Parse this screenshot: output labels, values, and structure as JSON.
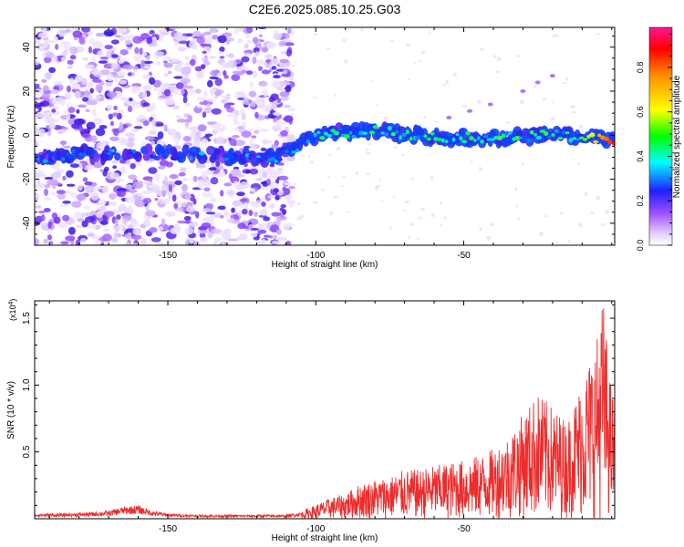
{
  "figure": {
    "title": "C2E6.2025.085.10.25.G03"
  },
  "chart_data": [
    {
      "type": "heatmap",
      "xlabel": "Height of straight line (km)",
      "ylabel": "Frequency (Hz)",
      "xlim": [
        -195,
        1
      ],
      "ylim": [
        -50,
        49
      ],
      "x_ticks": [
        -150,
        -100,
        -50
      ],
      "y_ticks": [
        -40,
        -20,
        0,
        20,
        40
      ],
      "grid": false,
      "colorbar": {
        "label": "Normalized spectral amplitude",
        "range": [
          0,
          0.98
        ],
        "ticks": [
          0.0,
          0.2,
          0.4,
          0.6,
          0.8
        ],
        "colors": [
          "#ffffff",
          "#e6d2ff",
          "#8a2be2",
          "#0000ff",
          "#00ffff",
          "#00ff00",
          "#ffff00",
          "#ff8c00",
          "#ff0000",
          "#ff1493"
        ]
      },
      "ridge": [
        {
          "x": -195,
          "y": -10
        },
        {
          "x": -180,
          "y": -9
        },
        {
          "x": -160,
          "y": -8
        },
        {
          "x": -140,
          "y": -9
        },
        {
          "x": -125,
          "y": -10
        },
        {
          "x": -112,
          "y": -10
        },
        {
          "x": -100,
          "y": 0
        },
        {
          "x": -80,
          "y": 2
        },
        {
          "x": -60,
          "y": -1
        },
        {
          "x": -40,
          "y": -1
        },
        {
          "x": -20,
          "y": 0
        },
        {
          "x": 0,
          "y": -2
        }
      ]
    },
    {
      "type": "line",
      "xlabel": "Height of straight line (km)",
      "ylabel": "SNR (10 * v/v)",
      "y_multiplier": "(x10",
      "y_multiplier_exp": "4",
      "y_multiplier_close": ")",
      "xlim": [
        -195,
        1
      ],
      "ylim": [
        0,
        1.63
      ],
      "x_ticks": [
        -150,
        -100,
        -50
      ],
      "y_ticks": [
        0.5,
        1.0,
        1.5
      ],
      "grid": false,
      "series": [
        {
          "color": "#ee2c2c",
          "x": [
            -195,
            -185,
            -175,
            -170,
            -165,
            -160,
            -155,
            -150,
            -140,
            -130,
            -120,
            -110,
            -105,
            -100,
            -95,
            -90,
            -85,
            -80,
            -75,
            -70,
            -65,
            -60,
            -55,
            -50,
            -45,
            -40,
            -35,
            -30,
            -25,
            -20,
            -15,
            -10,
            -5,
            -3,
            0,
            1
          ],
          "y": [
            0.04,
            0.04,
            0.05,
            0.06,
            0.09,
            0.1,
            0.06,
            0.04,
            0.03,
            0.03,
            0.03,
            0.03,
            0.05,
            0.1,
            0.15,
            0.18,
            0.25,
            0.28,
            0.3,
            0.35,
            0.35,
            0.38,
            0.4,
            0.42,
            0.45,
            0.5,
            0.6,
            0.75,
            0.9,
            0.8,
            0.7,
            1.0,
            1.3,
            1.6,
            0.9,
            0.9
          ]
        }
      ]
    }
  ]
}
